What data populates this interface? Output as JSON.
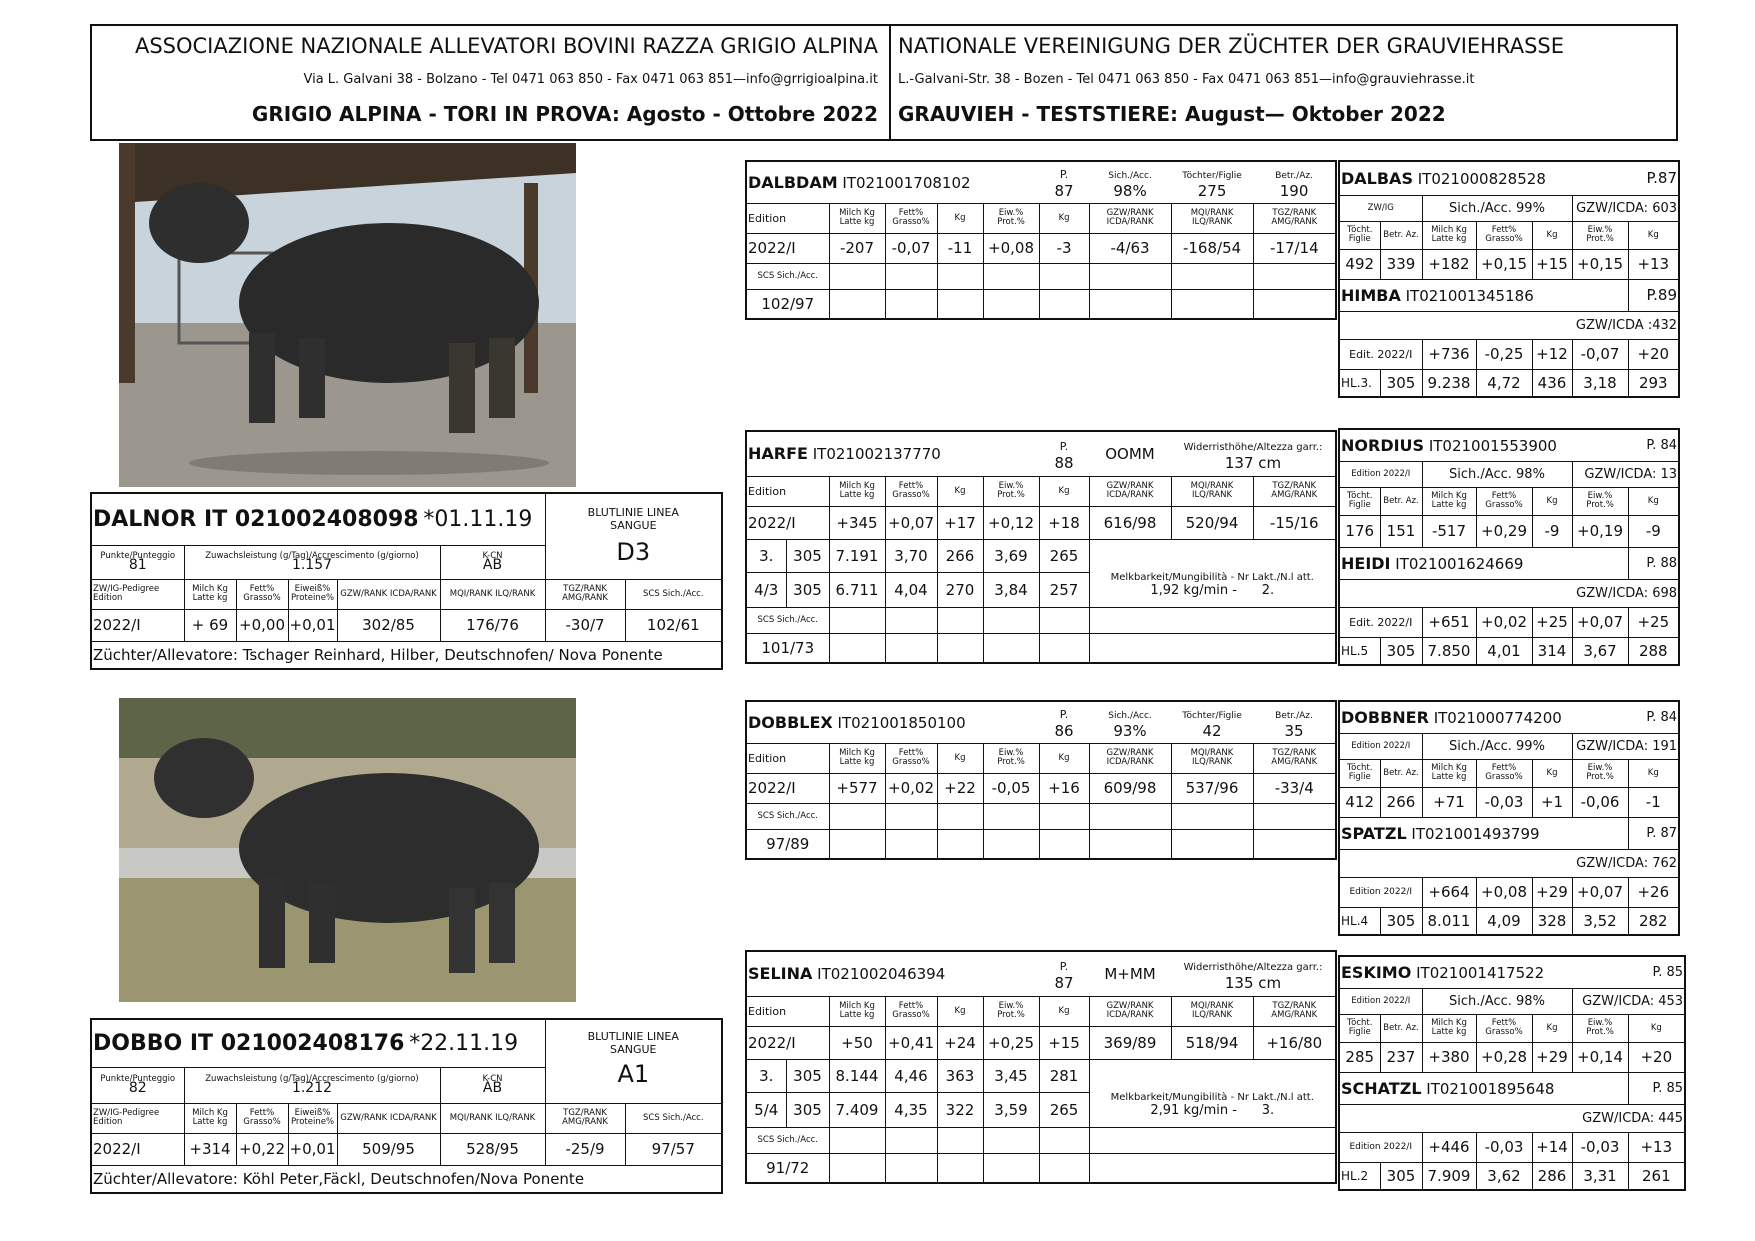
{
  "header": {
    "it_title": "ASSOCIAZIONE NAZIONALE ALLEVATORI BOVINI RAZZA GRIGIO ALPINA",
    "it_address": "Via L. Galvani 38 - Bolzano - Tel 0471 063 850 - Fax  0471 063 851—info@grrigioalpina.it",
    "it_subtitle": "GRIGIO ALPINA - TORI IN PROVA: Agosto - Ottobre  2022",
    "de_title": "NATIONALE VEREINIGUNG DER ZÜCHTER DER GRAUVIEHRASSE",
    "de_address": "L.-Galvani-Str. 38 - Bozen - Tel 0471 063 850 - Fax  0471 063 851—info@grauviehrasse.it",
    "de_subtitle": "GRAUVIEH - TESTSTIERE:  August— Oktober 2022"
  },
  "labels": {
    "edition": "Edition",
    "milch": "Milch Kg Latte kg",
    "fett": "Fett% Grasso%",
    "kg": "Kg",
    "eiw": "Eiw.% Prot.%",
    "gzw": "GZW/RANK ICDA/RANK",
    "mqi": "MQI/RANK ILQ/RANK",
    "tgz": "TGZ/RANK AMG/RANK",
    "scs": "SCS Sich./Acc.",
    "p": "P.",
    "sich": "Sich./Acc.",
    "toechter": "Töchter/Figlie",
    "betr": "Betr./Az.",
    "wither": "Widerristhöhe/Altezza garr.:",
    "melk": "Melkbarkeit/Mungibilità - Nr Lakt./N.l att.",
    "tocht": "Töcht. Figlie",
    "betraz": "Betr. Az.",
    "zwig": "ZW/IG",
    "punkte": "Punkte/Punteggio",
    "zuwachs": "Zuwachsleistung (g/Tag)/Accrescimento (g/giorno)",
    "kcn": "K-CN",
    "blut": "BLUTLINIE LINEA SANGUE",
    "zwped": "ZW/IG-Pedigree Edition",
    "eiwprot": "Eiweiß% Proteine%",
    "scs2": "SCS Sich./Acc."
  },
  "dalnor": {
    "name": "DALNOR  IT 021002408098",
    "born": "*01.11.19",
    "punkte": "81",
    "zuwachs": "1.157",
    "kcn": "AB",
    "blut": "D3",
    "edition": "2022/I",
    "milch": "+ 69",
    "fett": "+0,00",
    "eiw": "+0,01",
    "gzw": "302/85",
    "mqi": "176/76",
    "tgz": "-30/7",
    "scs": "102/61",
    "breeder": "Züchter/Allevatore:  Tschager Reinhard, Hilber, Deutschnofen/ Nova Ponente"
  },
  "dobbo": {
    "name": "DOBBO   IT  021002408176",
    "born": "*22.11.19",
    "punkte": "82",
    "zuwachs": "1.212",
    "kcn": "AB",
    "blut": "A1",
    "edition": "2022/I",
    "milch": "+314",
    "fett": "+0,22",
    "eiw": "+0,01",
    "gzw": "509/95",
    "mqi": "528/95",
    "tgz": "-25/9",
    "scs": "97/57",
    "breeder": "Züchter/Allevatore: Köhl Peter,Fäckl, Deutschnofen/Nova Ponente"
  },
  "dalbdam": {
    "name": "DALBDAM",
    "id": "IT021001708102",
    "p": "87",
    "sich": "98%",
    "toechter": "275",
    "betr": "190",
    "edition": "2022/I",
    "milch": "-207",
    "fett": "-0,07",
    "kg1": "-11",
    "eiw": "+0,08",
    "kg2": "-3",
    "gzw": "-4/63",
    "mqi": "-168/54",
    "tgz": "-17/14",
    "scs": "102/97"
  },
  "harfe": {
    "name": "HARFE",
    "id": "IT021002137770",
    "p": "88",
    "type": "OOMM",
    "height": "137 cm",
    "edition": "2022/I",
    "milch": "+345",
    "fett": "+0,07",
    "kg1": "+17",
    "eiw": "+0,12",
    "kg2": "+18",
    "gzw": "616/98",
    "mqi": "520/94",
    "tgz": "-15/16",
    "l1": [
      "3.",
      "305",
      "7.191",
      "3,70",
      "266",
      "3,69",
      "265"
    ],
    "l2": [
      "4/3",
      "305",
      "6.711",
      "4,04",
      "270",
      "3,84",
      "257"
    ],
    "melk": "1,92 kg/min -",
    "lakt": "2.",
    "scs": "101/73"
  },
  "dobblex": {
    "name": "DOBBLEX",
    "id": "IT021001850100",
    "p": "86",
    "sich": "93%",
    "toechter": "42",
    "betr": "35",
    "edition": "2022/I",
    "milch": "+577",
    "fett": "+0,02",
    "kg1": "+22",
    "eiw": "-0,05",
    "kg2": "+16",
    "gzw": "609/98",
    "mqi": "537/96",
    "tgz": "-33/4",
    "scs": "97/89"
  },
  "selina": {
    "name": "SELINA",
    "id": "IT021002046394",
    "p": "87",
    "type": "M+MM",
    "height": "135 cm",
    "edition": "2022/I",
    "milch": "+50",
    "fett": "+0,41",
    "kg1": "+24",
    "eiw": "+0,25",
    "kg2": "+15",
    "gzw": "369/89",
    "mqi": "518/94",
    "tgz": "+16/80",
    "l1": [
      "3.",
      "305",
      "8.144",
      "4,46",
      "363",
      "3,45",
      "281"
    ],
    "l2": [
      "5/4",
      "305",
      "7.409",
      "4,35",
      "322",
      "3,59",
      "265"
    ],
    "melk": "2,91 kg/min -",
    "lakt": "3.",
    "scs": "91/72"
  },
  "dalbas": {
    "name": "DALBAS",
    "id": "IT021000828528",
    "p": "P.87",
    "sich": "Sich./Acc. 99%",
    "gzw": "GZW/ICDA: 603",
    "row": [
      "492",
      "339",
      "+182",
      "+0,15",
      "+15",
      "+0,15",
      "+13"
    ]
  },
  "himba": {
    "name": "HIMBA",
    "id": "IT021001345186",
    "p": "P.89",
    "gzw": "GZW/ICDA :432",
    "ed": "Edit. 2022/I",
    "edrow": [
      "+736",
      "-0,25",
      "+12",
      "-0,07",
      "+20"
    ],
    "hl": "HL.3.",
    "hlrow": [
      "305",
      "9.238",
      "4,72",
      "436",
      "3,18",
      "293"
    ]
  },
  "nordius": {
    "name": "NORDIUS",
    "id": "IT021001553900",
    "p": "P. 84",
    "ed": "Edition 2022/I",
    "sich": "Sich./Acc. 98%",
    "gzw": "GZW/ICDA:  13",
    "row": [
      "176",
      "151",
      "-517",
      "+0,29",
      "-9",
      "+0,19",
      "-9"
    ]
  },
  "heidi": {
    "name": "HEIDI",
    "id": "IT021001624669",
    "p": "P. 88",
    "gzw": "GZW/ICDA: 698",
    "ed": "Edit. 2022/I",
    "edrow": [
      "+651",
      "+0,02",
      "+25",
      "+0,07",
      "+25"
    ],
    "hl": "HL.5",
    "hlrow": [
      "305",
      "7.850",
      "4,01",
      "314",
      "3,67",
      "288"
    ]
  },
  "dobbner": {
    "name": "DOBBNER",
    "id": "IT021000774200",
    "p": "P. 84",
    "ed": "Edition 2022/I",
    "sich": "Sich./Acc. 99%",
    "gzw": "GZW/ICDA: 191",
    "row": [
      "412",
      "266",
      "+71",
      "-0,03",
      "+1",
      "-0,06",
      "-1"
    ]
  },
  "spatzl": {
    "name": "SPATZL",
    "id": "IT021001493799",
    "p": "P. 87",
    "gzw": "GZW/ICDA: 762",
    "ed": "Edition 2022/I",
    "edrow": [
      "+664",
      "+0,08",
      "+29",
      "+0,07",
      "+26"
    ],
    "hl": "HL.4",
    "hlrow": [
      "305",
      "8.011",
      "4,09",
      "328",
      "3,52",
      "282"
    ]
  },
  "eskimo": {
    "name": "ESKIMO",
    "id": "IT021001417522",
    "p": "P. 85",
    "ed": "Edition 2022/I",
    "sich": "Sich./Acc. 98%",
    "gzw": "GZW/ICDA: 453",
    "row": [
      "285",
      "237",
      "+380",
      "+0,28",
      "+29",
      "+0,14",
      "+20"
    ]
  },
  "schatzl": {
    "name": "SCHATZL",
    "id": "IT021001895648",
    "p": "P. 85",
    "gzw": "GZW/ICDA: 445",
    "ed": "Edition 2022/I",
    "edrow": [
      "+446",
      "-0,03",
      "+14",
      "-0,03",
      "+13"
    ],
    "hl": "HL.2",
    "hlrow": [
      "305",
      "7.909",
      "3,62",
      "286",
      "3,31",
      "261"
    ]
  }
}
